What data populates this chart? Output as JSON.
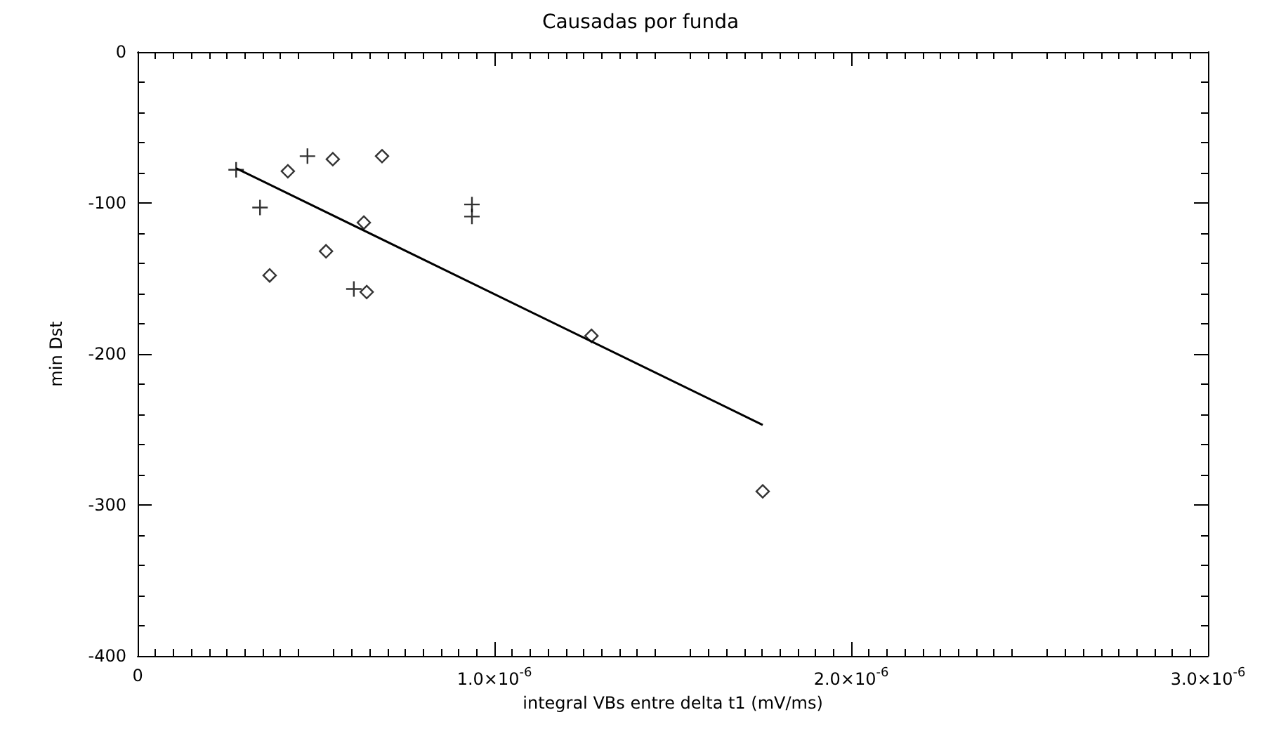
{
  "chart_data": {
    "type": "scatter",
    "title": "Causadas por funda",
    "xlabel": "integral VBs entre delta t1 (mV/ms)",
    "ylabel": "min Dst",
    "xlim": [
      0,
      3e-06
    ],
    "xticks": [
      0,
      {
        "value": 1e-06,
        "label": "1.0×10$^{-6}$"
      },
      {
        "value": 2e-06,
        "label": "2.0×10$^{-6}$"
      },
      {
        "value": 3e-06,
        "label": "3.0×10$^{-6}$"
      }
    ],
    "ylim": [
      -400,
      0
    ],
    "yticks": [
      -400,
      -300,
      -200,
      -100,
      0
    ],
    "grid": false,
    "series": [
      {
        "color": "#000000",
        "marker": "cross",
        "x": [
          2.76e-07,
          3.43e-07,
          4.76e-07,
          6.06e-07,
          9.37e-07,
          9.37e-07
        ],
        "values": [
          -78,
          -103,
          -69,
          -157,
          -101,
          -109
        ]
      },
      {
        "color": "#000000",
        "marker": "diamond",
        "x": [
          4.21e-07,
          5.47e-07,
          6.85e-07,
          6.34e-07,
          5.28e-07,
          3.7e-07,
          6.42e-07,
          1.272e-06,
          1.752e-06
        ],
        "values": [
          -79,
          -71,
          -69,
          -113,
          -132,
          -148,
          -159,
          -188,
          -291
        ]
      },
      {
        "type": "line",
        "color": "#000000",
        "marker": "none",
        "line_style": "solid",
        "x": [
          2.76e-07,
          1.752e-06
        ],
        "values": [
          -77,
          -247
        ]
      }
    ]
  }
}
